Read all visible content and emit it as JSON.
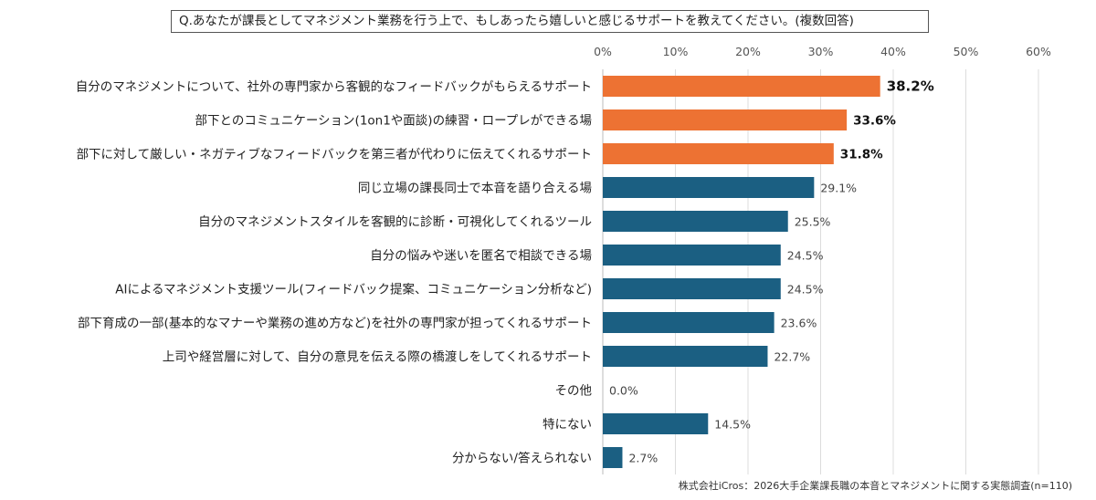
{
  "question": "Q.あなたが課長としてマネジメント業務を行う上で、もしあったら嬉しいと感じるサポートを教えてください。(複数回答)",
  "source": "株式会社iCros：2026大手企業課長職の本音とマネジメントに関する実態調査(n=110)",
  "colors": {
    "highlight": "#ed7233",
    "base": "#1b5f82",
    "grid": "#dcdcdc"
  },
  "chart_data": {
    "type": "bar",
    "orientation": "horizontal",
    "xlim": [
      0,
      60
    ],
    "xticks": [
      0,
      10,
      20,
      30,
      40,
      50,
      60
    ],
    "xtick_labels": [
      "0%",
      "10%",
      "20%",
      "30%",
      "40%",
      "50%",
      "60%"
    ],
    "grid": true,
    "categories": [
      "自分のマネジメントについて、社外の専門家から客観的なフィードバックがもらえるサポート",
      "部下とのコミュニケーション(1on1や面談)の練習・ロープレができる場",
      "部下に対して厳しい・ネガティブなフィードバックを第三者が代わりに伝えてくれるサポート",
      "同じ立場の課長同士で本音を語り合える場",
      "自分のマネジメントスタイルを客観的に診断・可視化してくれるツール",
      "自分の悩みや迷いを匿名で相談できる場",
      "AIによるマネジメント支援ツール(フィードバック提案、コミュニケーション分析など)",
      "部下育成の一部(基本的なマナーや業務の進め方など)を社外の専門家が担ってくれるサポート",
      "上司や経営層に対して、自分の意見を伝える際の橋渡しをしてくれるサポート",
      "その他",
      "特にない",
      "分からない/答えられない"
    ],
    "values": [
      38.2,
      33.6,
      31.8,
      29.1,
      25.5,
      24.5,
      24.5,
      23.6,
      22.7,
      0.0,
      14.5,
      2.7
    ],
    "value_labels": [
      "38.2%",
      "33.6%",
      "31.8%",
      "29.1%",
      "25.5%",
      "24.5%",
      "24.5%",
      "23.6%",
      "22.7%",
      "0.0%",
      "14.5%",
      "2.7%"
    ],
    "highlight_top": 3
  }
}
